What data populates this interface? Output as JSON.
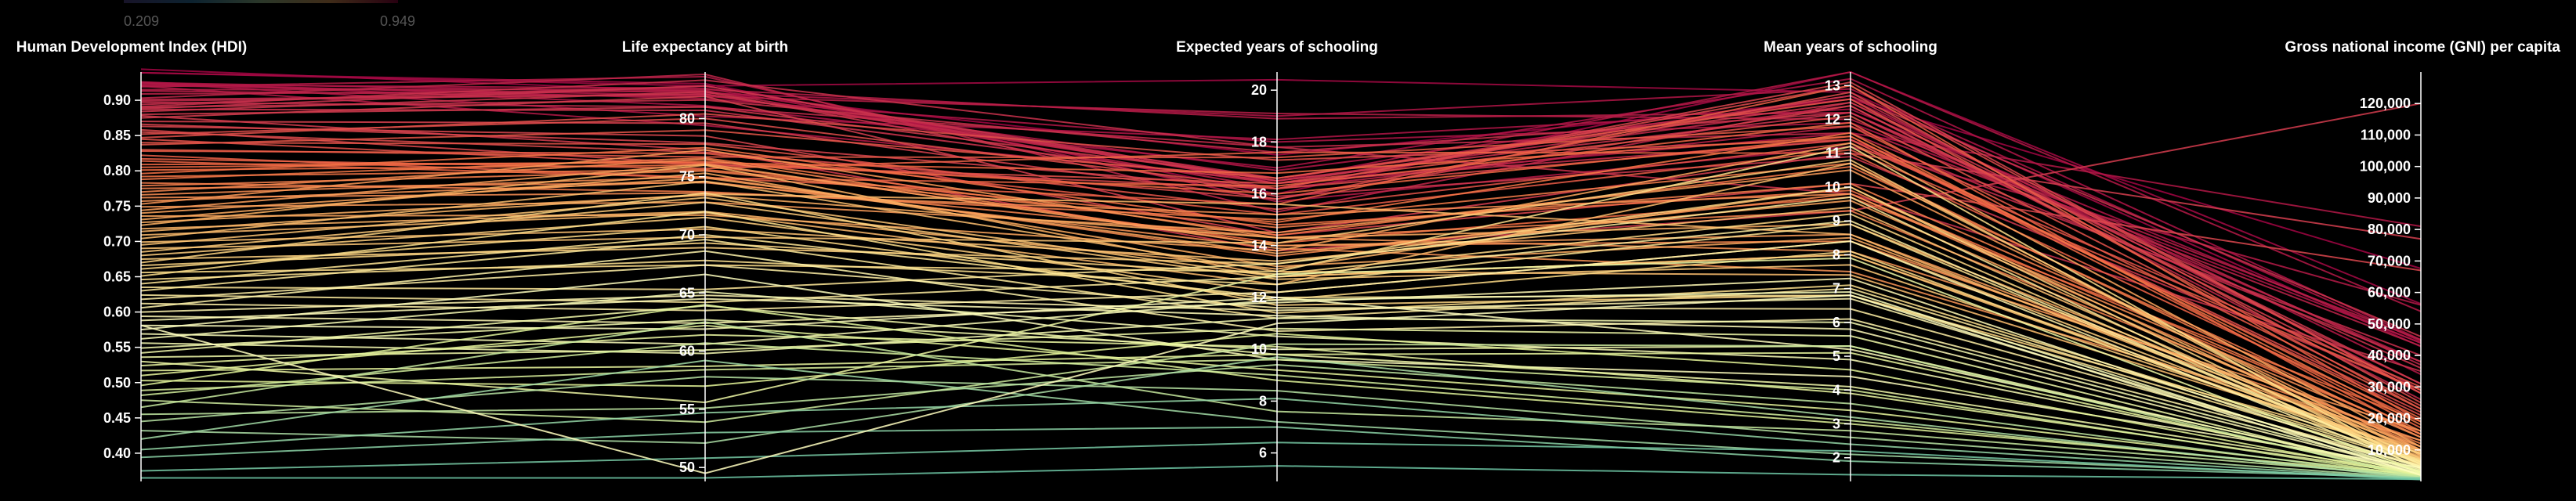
{
  "chart_data": {
    "type": "parallel-coordinates",
    "title": "",
    "color_legend": {
      "min_label": "0.209",
      "max_label": "0.949",
      "min": 0.209,
      "max": 0.949,
      "palette": "spectral"
    },
    "colors": {
      "background": "#000000",
      "axis": "#ffffff",
      "text": "#ffffff"
    },
    "axes": [
      {
        "key": "hdi",
        "label": "Human Development Index (HDI)",
        "range": [
          0.36,
          0.94
        ],
        "ticks": [
          "0.90",
          "0.85",
          "0.80",
          "0.75",
          "0.70",
          "0.65",
          "0.60",
          "0.55",
          "0.50",
          "0.45",
          "0.40"
        ]
      },
      {
        "key": "life",
        "label": "Life expectancy at birth",
        "range": [
          48.8,
          84.0
        ],
        "ticks": [
          "80",
          "75",
          "70",
          "65",
          "60",
          "55",
          "50"
        ]
      },
      {
        "key": "exp_school",
        "label": "Expected years of schooling",
        "range": [
          4.9,
          20.7
        ],
        "ticks": [
          "20",
          "18",
          "16",
          "14",
          "12",
          "10",
          "8",
          "6"
        ]
      },
      {
        "key": "mean_school",
        "label": "Mean years of schooling",
        "range": [
          1.3,
          13.4
        ],
        "ticks": [
          "13",
          "12",
          "11",
          "10",
          "9",
          "8",
          "7",
          "6",
          "5",
          "4",
          "3",
          "2"
        ]
      },
      {
        "key": "gni",
        "label": "Gross national income (GNI) per capita",
        "range": [
          0,
          130000
        ],
        "ticks": [
          "120,000",
          "110,000",
          "100,000",
          "90,000",
          "80,000",
          "70,000",
          "60,000",
          "50,000",
          "40,000",
          "30,000",
          "20,000",
          "10,000"
        ]
      }
    ],
    "series": [
      {
        "values": [
          0.944,
          82.3,
          17.5,
          12.6,
          67614
        ]
      },
      {
        "values": [
          0.939,
          83.0,
          16.0,
          13.4,
          56364
        ]
      },
      {
        "values": [
          0.939,
          82.8,
          20.4,
          12.8,
          42822
        ]
      },
      {
        "values": [
          0.926,
          81.1,
          17.0,
          13.2,
          45000
        ]
      },
      {
        "values": [
          0.925,
          80.2,
          18.1,
          12.3,
          43919
        ]
      },
      {
        "values": [
          0.925,
          82.2,
          19.0,
          12.9,
          44519
        ]
      },
      {
        "values": [
          0.924,
          81.7,
          18.0,
          11.9,
          44000
        ]
      },
      {
        "values": [
          0.922,
          82.6,
          16.4,
          11.6,
          81000
        ]
      },
      {
        "values": [
          0.921,
          82.0,
          16.9,
          12.6,
          34000
        ]
      },
      {
        "values": [
          0.92,
          79.4,
          16.5,
          13.4,
          54000
        ]
      },
      {
        "values": [
          0.919,
          83.6,
          15.7,
          11.2,
          56000
        ]
      },
      {
        "values": [
          0.915,
          82.5,
          18.9,
          12.2,
          38000
        ]
      },
      {
        "values": [
          0.913,
          81.9,
          19.1,
          12.0,
          45000
        ]
      },
      {
        "values": [
          0.909,
          82.4,
          16.2,
          11.8,
          43000
        ]
      },
      {
        "values": [
          0.903,
          83.8,
          15.3,
          12.5,
          37000
        ]
      },
      {
        "values": [
          0.901,
          82.1,
          16.5,
          12.4,
          26000
        ]
      },
      {
        "values": [
          0.899,
          82.1,
          16.6,
          12.7,
          29000
        ]
      },
      {
        "values": [
          0.897,
          81.0,
          17.8,
          11.6,
          38000
        ]
      },
      {
        "values": [
          0.894,
          82.8,
          16.4,
          11.4,
          40000
        ]
      },
      {
        "values": [
          0.891,
          83.3,
          17.8,
          9.8,
          35000
        ]
      },
      {
        "values": [
          0.89,
          81.6,
          17.6,
          12.2,
          31000
        ]
      },
      {
        "values": [
          0.888,
          82.8,
          16.5,
          12.2,
          36000
        ]
      },
      {
        "values": [
          0.887,
          80.7,
          16.4,
          12.7,
          46000
        ]
      },
      {
        "values": [
          0.884,
          82.3,
          15.9,
          10.9,
          29000
        ]
      },
      {
        "values": [
          0.88,
          81.0,
          16.6,
          12.5,
          31000
        ]
      },
      {
        "values": [
          0.878,
          77.3,
          13.8,
          9.3,
          120000
        ]
      },
      {
        "values": [
          0.875,
          81.9,
          14.5,
          11.0,
          77000
        ]
      },
      {
        "values": [
          0.87,
          79.6,
          15.8,
          12.4,
          28000
        ]
      },
      {
        "values": [
          0.866,
          77.9,
          16.2,
          13.1,
          28000
        ]
      },
      {
        "values": [
          0.863,
          78.5,
          14.4,
          10.1,
          67000
        ]
      },
      {
        "values": [
          0.858,
          76.1,
          16.2,
          13.0,
          28000
        ]
      },
      {
        "values": [
          0.855,
          77.1,
          15.8,
          12.8,
          25000
        ]
      },
      {
        "values": [
          0.852,
          80.0,
          16.2,
          11.4,
          22000
        ]
      },
      {
        "values": [
          0.847,
          80.4,
          17.3,
          11.4,
          21000
        ]
      },
      {
        "values": [
          0.845,
          76.0,
          16.4,
          12.1,
          24000
        ]
      },
      {
        "values": [
          0.84,
          77.8,
          15.4,
          11.3,
          30000
        ]
      },
      {
        "values": [
          0.837,
          79.0,
          16.6,
          12.6,
          23000
        ]
      },
      {
        "values": [
          0.83,
          76.7,
          17.4,
          11.8,
          23000
        ]
      },
      {
        "values": [
          0.828,
          77.0,
          15.2,
          11.1,
          29000
        ]
      },
      {
        "values": [
          0.822,
          74.9,
          15.6,
          13.0,
          19000
        ]
      },
      {
        "values": [
          0.817,
          75.7,
          17.6,
          11.0,
          19000
        ]
      },
      {
        "values": [
          0.814,
          74.9,
          16.3,
          11.9,
          15000
        ]
      },
      {
        "values": [
          0.809,
          76.2,
          16.8,
          11.5,
          20000
        ]
      },
      {
        "values": [
          0.805,
          76.3,
          16.0,
          11.5,
          17000
        ]
      },
      {
        "values": [
          0.801,
          76.0,
          14.1,
          9.7,
          19000
        ]
      },
      {
        "values": [
          0.796,
          77.5,
          14.8,
          9.9,
          15000
        ]
      },
      {
        "values": [
          0.792,
          75.6,
          14.9,
          11.6,
          18000
        ]
      },
      {
        "values": [
          0.788,
          76.6,
          14.4,
          10.6,
          16000
        ]
      },
      {
        "values": [
          0.783,
          73.7,
          15.0,
          10.7,
          14000
        ]
      },
      {
        "values": [
          0.779,
          75.5,
          14.7,
          10.1,
          15000
        ]
      },
      {
        "values": [
          0.775,
          74.5,
          14.3,
          9.3,
          12000
        ]
      },
      {
        "values": [
          0.77,
          76.5,
          14.0,
          8.4,
          13000
        ]
      },
      {
        "values": [
          0.766,
          75.0,
          13.6,
          9.8,
          11000
        ]
      },
      {
        "values": [
          0.762,
          73.6,
          15.2,
          9.8,
          14000
        ]
      },
      {
        "values": [
          0.757,
          74.6,
          13.9,
          7.5,
          13000
        ]
      },
      {
        "values": [
          0.753,
          77.3,
          14.3,
          8.1,
          16000
        ]
      },
      {
        "values": [
          0.749,
          72.8,
          14.5,
          10.5,
          10000
        ]
      },
      {
        "values": [
          0.744,
          76.1,
          14.0,
          8.6,
          11000
        ]
      },
      {
        "values": [
          0.74,
          74.9,
          13.7,
          9.6,
          10000
        ]
      },
      {
        "values": [
          0.736,
          71.7,
          13.8,
          11.3,
          11000
        ]
      },
      {
        "values": [
          0.731,
          75.3,
          13.2,
          8.5,
          10000
        ]
      },
      {
        "values": [
          0.727,
          73.4,
          14.3,
          8.9,
          9500
        ]
      },
      {
        "values": [
          0.723,
          76.0,
          12.8,
          8.0,
          9000
        ]
      },
      {
        "values": [
          0.718,
          72.0,
          13.1,
          10.0,
          8300
        ]
      },
      {
        "values": [
          0.714,
          73.5,
          15.6,
          8.6,
          7800
        ]
      },
      {
        "values": [
          0.709,
          71.9,
          12.5,
          10.7,
          8200
        ]
      },
      {
        "values": [
          0.704,
          74.6,
          13.0,
          7.4,
          9600
        ]
      },
      {
        "values": [
          0.699,
          70.5,
          13.4,
          9.4,
          7200
        ]
      },
      {
        "values": [
          0.695,
          73.2,
          12.8,
          8.0,
          7500
        ]
      },
      {
        "values": [
          0.69,
          69.8,
          14.1,
          10.8,
          6200
        ]
      },
      {
        "values": [
          0.685,
          72.8,
          12.7,
          7.7,
          8800
        ]
      },
      {
        "values": [
          0.68,
          71.5,
          12.2,
          8.4,
          7000
        ]
      },
      {
        "values": [
          0.675,
          68.9,
          13.3,
          10.0,
          5200
        ]
      },
      {
        "values": [
          0.67,
          73.6,
          11.7,
          6.8,
          8900
        ]
      },
      {
        "values": [
          0.666,
          69.3,
          12.9,
          9.2,
          6000
        ]
      },
      {
        "values": [
          0.661,
          70.7,
          11.9,
          8.1,
          6500
        ]
      },
      {
        "values": [
          0.656,
          67.4,
          13.0,
          11.2,
          4500
        ]
      },
      {
        "values": [
          0.651,
          72.0,
          11.4,
          7.1,
          6800
        ]
      },
      {
        "values": [
          0.646,
          67.8,
          12.5,
          8.9,
          5400
        ]
      },
      {
        "values": [
          0.64,
          70.0,
          12.0,
          6.8,
          5900
        ]
      },
      {
        "values": [
          0.635,
          65.3,
          13.3,
          9.7,
          4000
        ]
      },
      {
        "values": [
          0.63,
          69.6,
          11.2,
          7.0,
          6300
        ]
      },
      {
        "values": [
          0.624,
          64.2,
          12.8,
          9.0,
          5500
        ]
      },
      {
        "values": [
          0.618,
          67.4,
          11.6,
          6.4,
          5000
        ]
      },
      {
        "values": [
          0.612,
          63.5,
          12.2,
          8.4,
          4600
        ]
      },
      {
        "values": [
          0.606,
          68.6,
          10.7,
          6.1,
          4800
        ]
      },
      {
        "values": [
          0.6,
          64.8,
          11.5,
          6.7,
          3800
        ]
      },
      {
        "values": [
          0.594,
          62.4,
          11.8,
          7.3,
          4200
        ]
      },
      {
        "values": [
          0.588,
          64.5,
          11.3,
          5.8,
          3200
        ]
      },
      {
        "values": [
          0.581,
          61.9,
          12.0,
          5.2,
          3000
        ]
      },
      {
        "values": [
          0.575,
          66.6,
          9.6,
          4.4,
          4400
        ]
      },
      {
        "values": [
          0.569,
          60.6,
          11.9,
          6.9,
          2900
        ]
      },
      {
        "values": [
          0.562,
          65.1,
          10.5,
          4.9,
          2700
        ]
      },
      {
        "values": [
          0.556,
          59.8,
          11.2,
          6.0,
          3500
        ]
      },
      {
        "values": [
          0.549,
          62.7,
          10.0,
          5.3,
          2400
        ]
      },
      {
        "values": [
          0.542,
          63.9,
          9.8,
          4.1,
          2600
        ]
      },
      {
        "values": [
          0.536,
          60.1,
          10.8,
          5.6,
          2000
        ]
      },
      {
        "values": [
          0.53,
          55.6,
          12.9,
          7.9,
          2900
        ]
      },
      {
        "values": [
          0.524,
          61.4,
          10.1,
          3.9,
          2200
        ]
      },
      {
        "values": [
          0.517,
          58.7,
          9.8,
          5.1,
          1800
        ]
      },
      {
        "values": [
          0.51,
          62.2,
          9.2,
          3.4,
          1900
        ]
      },
      {
        "values": [
          0.503,
          57.0,
          10.6,
          4.6,
          1500
        ]
      },
      {
        "values": [
          0.496,
          64.0,
          8.8,
          3.0,
          2100
        ]
      },
      {
        "values": [
          0.489,
          58.4,
          9.6,
          4.0,
          1400
        ]
      },
      {
        "values": [
          0.482,
          60.7,
          9.0,
          3.1,
          1300
        ]
      },
      {
        "values": [
          0.475,
          53.9,
          10.2,
          5.3,
          1200
        ]
      },
      {
        "values": [
          0.465,
          62.5,
          7.6,
          2.8,
          1700
        ]
      },
      {
        "values": [
          0.455,
          55.1,
          9.4,
          3.6,
          1100
        ]
      },
      {
        "values": [
          0.445,
          57.8,
          8.4,
          2.6,
          1000
        ]
      },
      {
        "values": [
          0.432,
          52.1,
          9.7,
          3.2,
          900
        ]
      },
      {
        "values": [
          0.42,
          59.2,
          7.2,
          2.1,
          1000
        ]
      },
      {
        "values": [
          0.405,
          54.7,
          8.1,
          2.4,
          800
        ]
      },
      {
        "values": [
          0.394,
          53.0,
          7.0,
          1.9,
          1200
        ]
      },
      {
        "values": [
          0.375,
          50.8,
          6.4,
          2.2,
          600
        ]
      },
      {
        "values": [
          0.365,
          49.1,
          5.5,
          1.5,
          700
        ]
      },
      {
        "values": [
          0.581,
          49.5,
          11.0,
          6.8,
          2000
        ]
      }
    ]
  }
}
